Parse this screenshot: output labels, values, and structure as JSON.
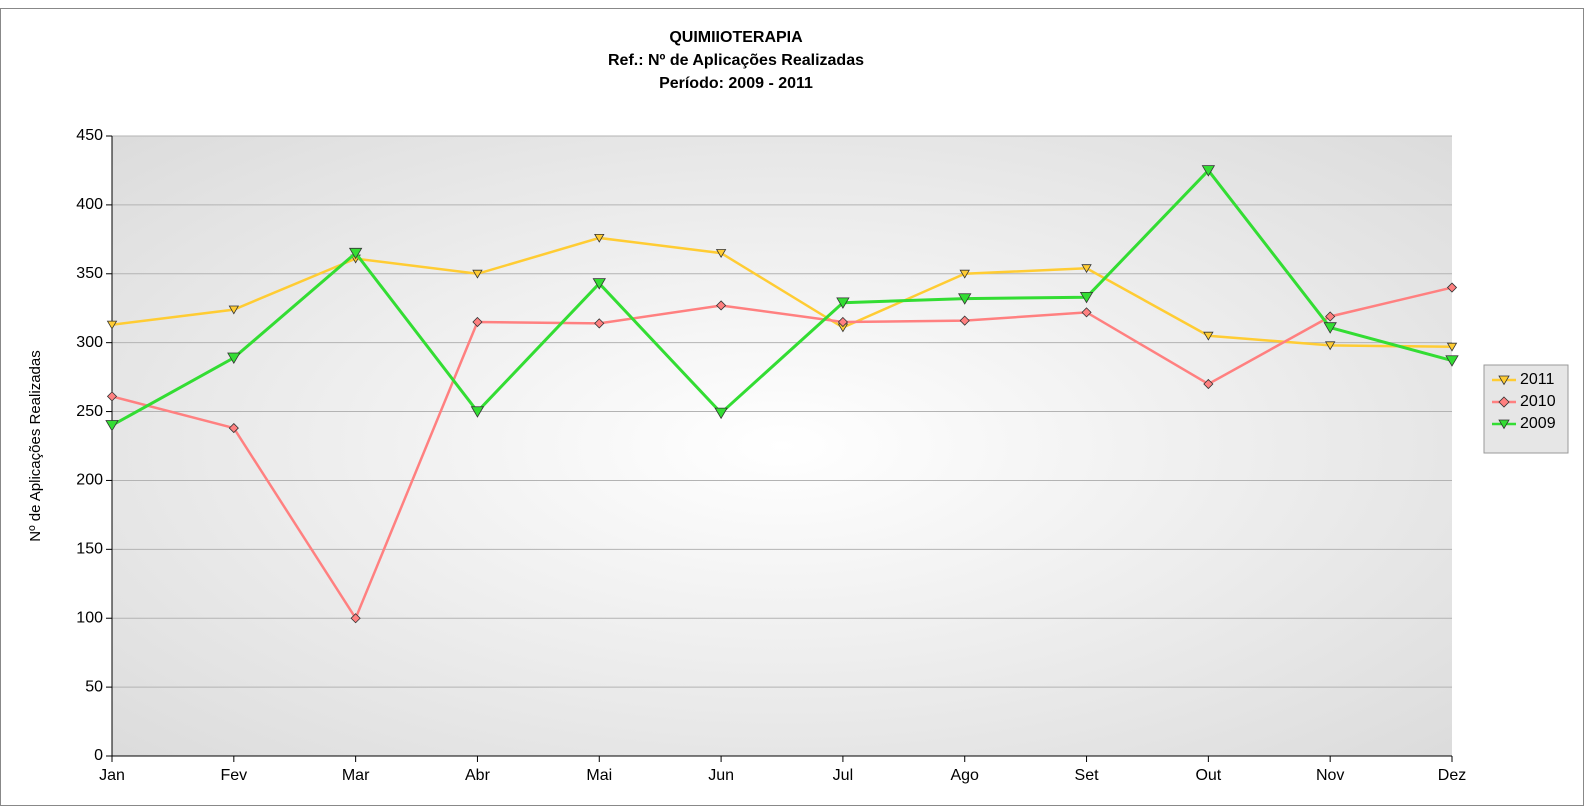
{
  "chart_data": {
    "type": "line",
    "title": "QUIMIIOTERAPIA",
    "subtitle": [
      "Ref.: Nº de Aplicações Realizadas",
      "Período: 2009 - 2011"
    ],
    "y_label": "Nº de Aplicações Realizadas",
    "categories": [
      "Jan",
      "Fev",
      "Mar",
      "Abr",
      "Mai",
      "Jun",
      "Jul",
      "Ago",
      "Set",
      "Out",
      "Nov",
      "Dez"
    ],
    "series": [
      {
        "name": "2011",
        "color": "#ffcc33",
        "marker": "triangle-down",
        "values": [
          313,
          324,
          361,
          350,
          376,
          365,
          311,
          350,
          354,
          305,
          298,
          297
        ]
      },
      {
        "name": "2010",
        "color": "#ff8080",
        "marker": "diamond",
        "values": [
          261,
          238,
          100,
          315,
          314,
          327,
          315,
          316,
          322,
          270,
          319,
          340
        ]
      },
      {
        "name": "2009",
        "color": "#33dd33",
        "marker": "triangle-down",
        "values": [
          240,
          289,
          365,
          250,
          343,
          249,
          329,
          332,
          333,
          425,
          311,
          287
        ]
      }
    ],
    "ylim": [
      0,
      450
    ],
    "yticks": [
      0,
      50,
      100,
      150,
      200,
      250,
      300,
      350,
      400,
      450
    ],
    "grid": true,
    "legend": "right"
  }
}
